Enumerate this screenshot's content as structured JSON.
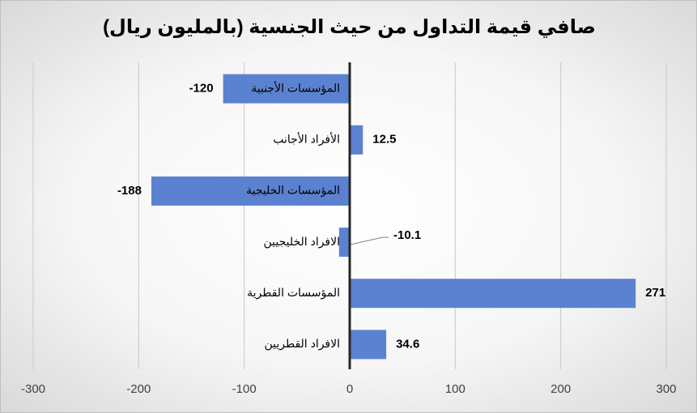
{
  "chart_data": {
    "type": "barh",
    "title": "صافي قيمة التداول من حيث الجنسية (بالمليون ريال)",
    "categories": [
      "المؤسسات الأجنبية",
      "الأفراد الأجانب",
      "المؤسسات الخليجية",
      "الافراد الخليجيين",
      "المؤسسات القطرية",
      "الافراد القطريين"
    ],
    "values": [
      -120,
      12.5,
      -188,
      -10.1,
      271,
      34.6
    ],
    "color": "#5b82d0",
    "xlim": [
      -300,
      300
    ],
    "xticks": [
      -300,
      -200,
      -100,
      0,
      100,
      200,
      300
    ],
    "grid": true
  }
}
